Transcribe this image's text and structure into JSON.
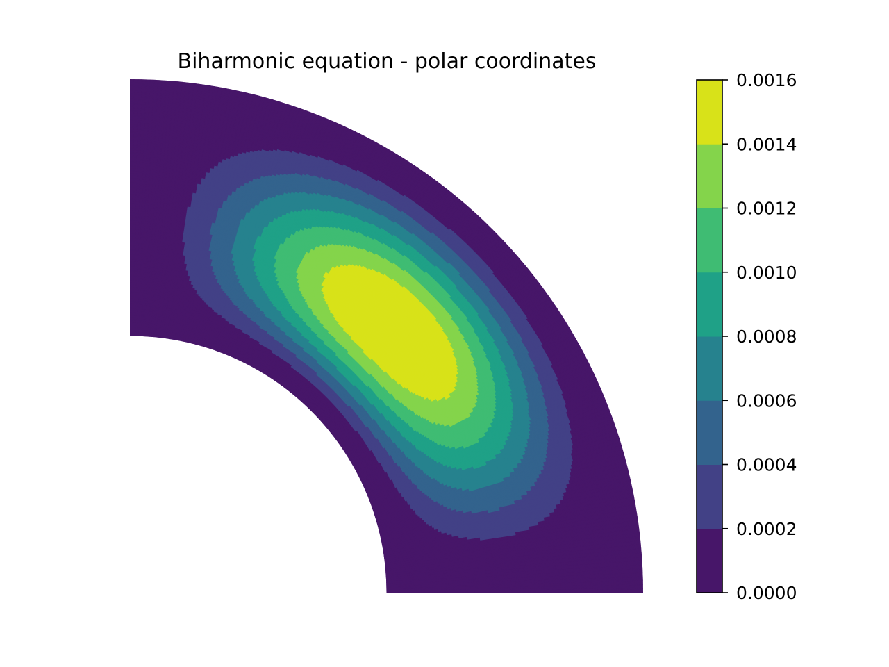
{
  "chart_data": {
    "type": "contourf",
    "title": "Biharmonic equation - polar coordinates",
    "xlabel": "",
    "ylabel": "",
    "axes_visible": false,
    "grid": false,
    "domain": {
      "shape": "annular quarter sector",
      "r_inner": 1,
      "r_outer": 2,
      "theta_range_deg": [
        0,
        90
      ]
    },
    "peak": {
      "r": 1.55,
      "theta_deg": 46,
      "value": 0.00155
    },
    "levels": [
      0.0,
      0.0002,
      0.0004,
      0.0006,
      0.0008,
      0.001,
      0.0012,
      0.0014,
      0.0016
    ],
    "level_colors": [
      "#471669",
      "#424186",
      "#33638d",
      "#26828e",
      "#1fa187",
      "#3fbc73",
      "#84d44b",
      "#d8e219"
    ],
    "colorbar": {
      "placement": "right",
      "range": [
        0.0,
        0.0016
      ],
      "ticks": [
        "0.0000",
        "0.0002",
        "0.0004",
        "0.0006",
        "0.0008",
        "0.0010",
        "0.0012",
        "0.0014",
        "0.0016"
      ]
    }
  }
}
